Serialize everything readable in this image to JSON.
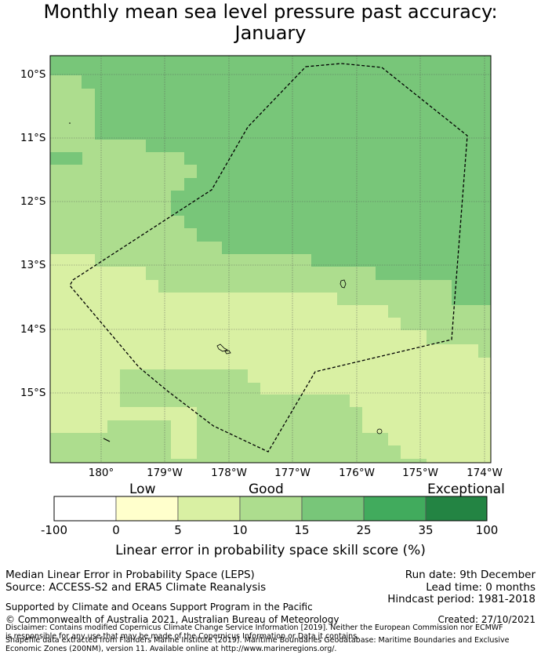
{
  "title": {
    "line1": "Monthly mean sea level pressure past accuracy:",
    "line2": "January"
  },
  "map": {
    "lat_labels": [
      "10°S",
      "11°S",
      "12°S",
      "13°S",
      "14°S",
      "15°S"
    ],
    "lon_labels": [
      "180°",
      "179°W",
      "178°W",
      "177°W",
      "176°W",
      "175°W",
      "174°W"
    ],
    "colors": {
      "ocean_boundary_line": "#000000",
      "gridline": "#555555"
    }
  },
  "colorbar": {
    "categories": [
      {
        "label": "Low"
      },
      {
        "label": "Good"
      },
      {
        "label": "Exceptional"
      }
    ],
    "bins": [
      {
        "from": -100,
        "to": 0,
        "color": "#ffffff"
      },
      {
        "from": 0,
        "to": 5,
        "color": "#ffffcc"
      },
      {
        "from": 5,
        "to": 10,
        "color": "#d9f0a3"
      },
      {
        "from": 10,
        "to": 15,
        "color": "#addd8e"
      },
      {
        "from": 15,
        "to": 25,
        "color": "#78c679"
      },
      {
        "from": 25,
        "to": 35,
        "color": "#41ab5d"
      },
      {
        "from": 35,
        "to": 100,
        "color": "#238443"
      }
    ],
    "ticks": [
      "-100",
      "0",
      "5",
      "10",
      "15",
      "25",
      "35",
      "100"
    ],
    "label": "Linear error in probability space skill score (%)"
  },
  "footer": {
    "method": "Median Linear Error in Probability Space (LEPS)",
    "source": "Source: ACCESS-S2 and ERA5 Climate Reanalysis",
    "run_date": "Run date: 9th December",
    "lead_time": "Lead time: 0 months",
    "hindcast": "Hindcast period: 1981-2018",
    "support": "Supported by Climate and Oceans Support Program in the Pacific",
    "copyright": "© Commonwealth of Australia 2021, Australian Bureau of Meteorology",
    "created": "Created: 27/10/2021",
    "disclaimer": "Disclaimer: Contains modified Copernicus Climate Change Service Information [2019]. Neither the European Commission nor ECMWF is responsible for any use that may be made of the Copernicus Information or Data it contains.",
    "shapefile": "Shapefile data extracted from Flanders Marine Institute (2019). Maritime Boundaries Geodatabase: Maritime Boundaries and Exclusive Economic Zones (200NM), version 11. Available online at http://www.marineregions.org/."
  }
}
